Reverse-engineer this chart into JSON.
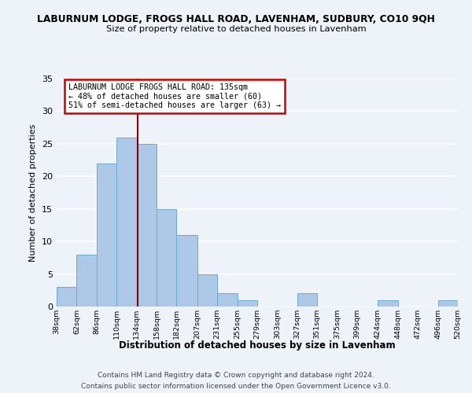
{
  "title": "LABURNUM LODGE, FROGS HALL ROAD, LAVENHAM, SUDBURY, CO10 9QH",
  "subtitle": "Size of property relative to detached houses in Lavenham",
  "xlabel": "Distribution of detached houses by size in Lavenham",
  "ylabel": "Number of detached properties",
  "bin_edges": [
    38,
    62,
    86,
    110,
    134,
    158,
    182,
    207,
    231,
    255,
    279,
    303,
    327,
    351,
    375,
    399,
    424,
    448,
    472,
    496,
    520
  ],
  "bin_counts": [
    3,
    8,
    22,
    26,
    25,
    15,
    11,
    5,
    2,
    1,
    0,
    0,
    2,
    0,
    0,
    0,
    1,
    0,
    0,
    1
  ],
  "bar_color": "#aec9e8",
  "bar_edge_color": "#6aabd2",
  "property_size": 135,
  "vline_color": "#8b0000",
  "annotation_title": "LABURNUM LODGE FROGS HALL ROAD: 135sqm",
  "annotation_line2": "← 48% of detached houses are smaller (60)",
  "annotation_line3": "51% of semi-detached houses are larger (63) →",
  "annotation_box_edge": "#cc0000",
  "ylim": [
    0,
    35
  ],
  "yticks": [
    0,
    5,
    10,
    15,
    20,
    25,
    30,
    35
  ],
  "tick_labels": [
    "38sqm",
    "62sqm",
    "86sqm",
    "110sqm",
    "134sqm",
    "158sqm",
    "182sqm",
    "207sqm",
    "231sqm",
    "255sqm",
    "279sqm",
    "303sqm",
    "327sqm",
    "351sqm",
    "375sqm",
    "399sqm",
    "424sqm",
    "448sqm",
    "472sqm",
    "496sqm",
    "520sqm"
  ],
  "footer_line1": "Contains HM Land Registry data © Crown copyright and database right 2024.",
  "footer_line2": "Contains public sector information licensed under the Open Government Licence v3.0.",
  "background_color": "#eef2f9",
  "grid_color": "#ffffff"
}
